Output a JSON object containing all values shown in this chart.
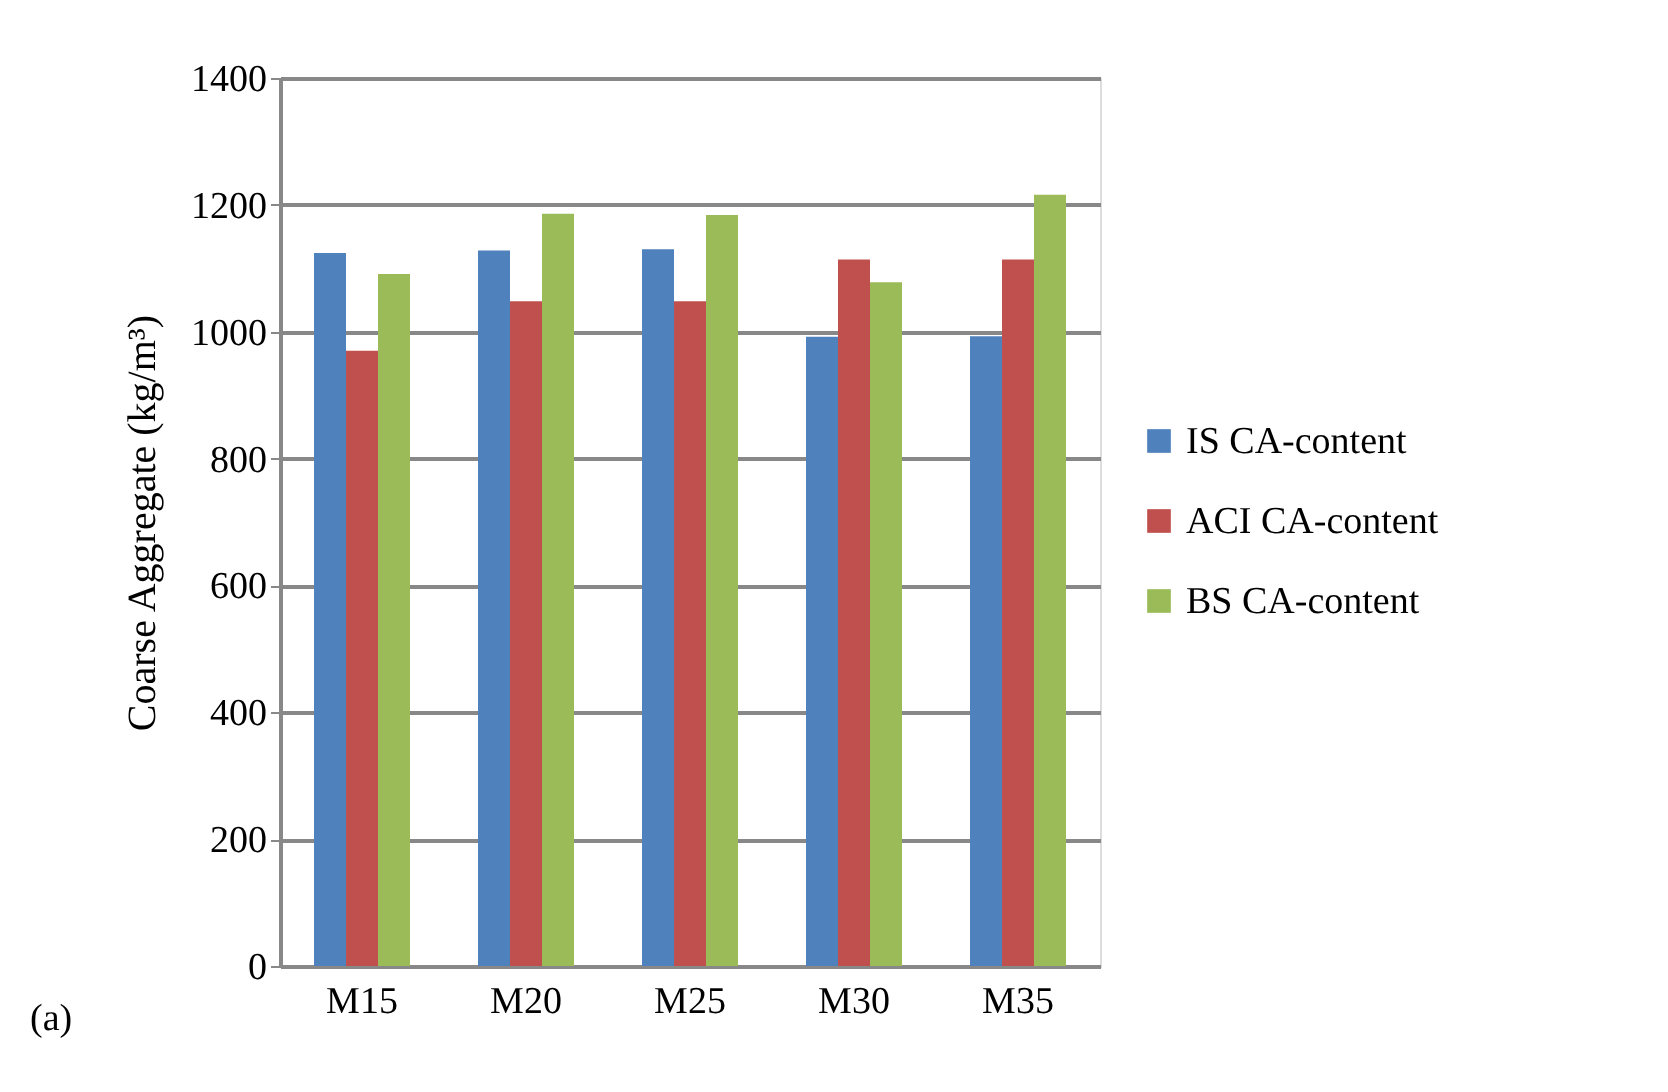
{
  "chart_data": {
    "type": "bar",
    "ylabel": "Coarse Aggregate (kg/m³)",
    "categories": [
      "M15",
      "M20",
      "M25",
      "M30",
      "M35"
    ],
    "series": [
      {
        "name": "IS CA-content",
        "color": "#4f81bd",
        "values": [
          1124,
          1128,
          1130,
          992,
          993
        ]
      },
      {
        "name": "ACI CA-content",
        "color": "#c0504d",
        "values": [
          970,
          1048,
          1048,
          1114,
          1114
        ]
      },
      {
        "name": "BS CA-content",
        "color": "#9bbb59",
        "values": [
          1091,
          1186,
          1184,
          1078,
          1216
        ]
      }
    ],
    "ylim": [
      0,
      1400
    ],
    "yticks": [
      0,
      200,
      400,
      600,
      800,
      1000,
      1200,
      1400
    ],
    "grid": "y",
    "legend": "right",
    "annotations": [
      "(a)"
    ]
  }
}
